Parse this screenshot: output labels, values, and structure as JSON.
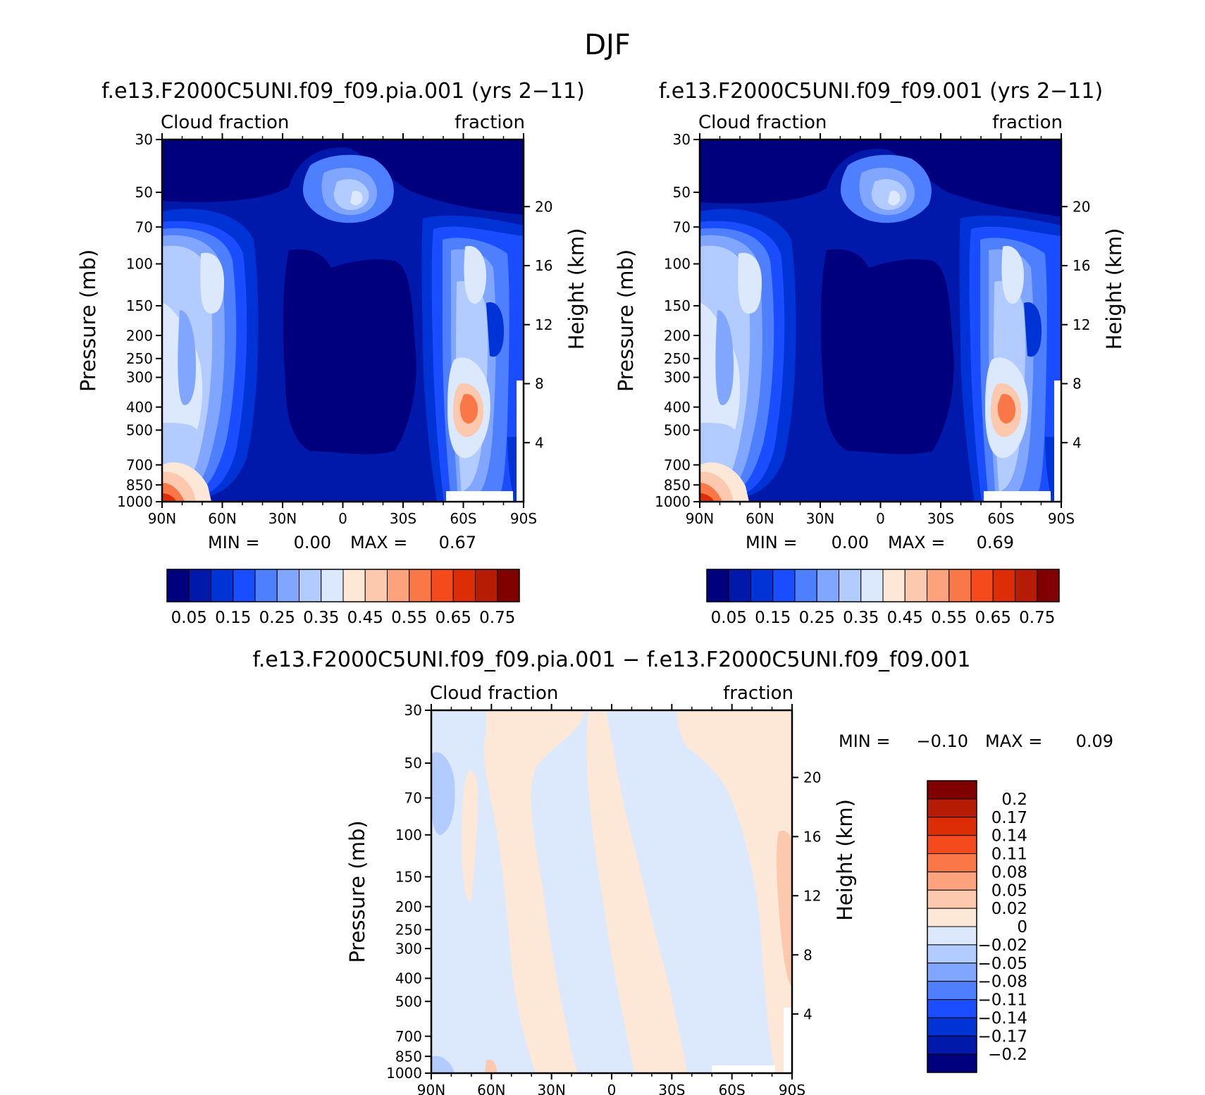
{
  "figure": {
    "title": "DJF"
  },
  "chart_data": [
    {
      "type": "heatmap",
      "title": "f.e13.F2000C5UNI.f09_f09.pia.001 (yrs 2−11)",
      "left_label": "Cloud fraction",
      "right_label": "fraction",
      "ylabel": "Pressure (mb)",
      "ylabel_right": "Height (km)",
      "xticks": [
        "90N",
        "60N",
        "30N",
        "0",
        "30S",
        "60S",
        "90S"
      ],
      "yticks": [
        "30",
        "50",
        "70",
        "100",
        "150",
        "200",
        "250",
        "300",
        "400",
        "500",
        "700",
        "850",
        "1000"
      ],
      "yticks_right": [
        "20",
        "16",
        "12",
        "8",
        "4"
      ],
      "min_text": "MIN =",
      "min_value": "0.00",
      "max_text": "MAX =",
      "max_value": "0.67",
      "colorbar_labels": [
        "0.05",
        "0.15",
        "0.25",
        "0.35",
        "0.45",
        "0.55",
        "0.65",
        "0.75"
      ],
      "colorbar_colors": [
        "#00007f",
        "#0019aa",
        "#0033d5",
        "#1a4dff",
        "#4d7fff",
        "#80a6ff",
        "#b3ccff",
        "#dce9fc",
        "#fde8d8",
        "#fcc9ae",
        "#fca37d",
        "#fa7848",
        "#f44a1c",
        "#dd2d06",
        "#b51c03",
        "#800000"
      ]
    },
    {
      "type": "heatmap",
      "title": "f.e13.F2000C5UNI.f09_f09.001 (yrs 2−11)",
      "left_label": "Cloud fraction",
      "right_label": "fraction",
      "ylabel": "Pressure (mb)",
      "ylabel_right": "Height (km)",
      "xticks": [
        "90N",
        "60N",
        "30N",
        "0",
        "30S",
        "60S",
        "90S"
      ],
      "yticks": [
        "30",
        "50",
        "70",
        "100",
        "150",
        "200",
        "250",
        "300",
        "400",
        "500",
        "700",
        "850",
        "1000"
      ],
      "yticks_right": [
        "20",
        "16",
        "12",
        "8",
        "4"
      ],
      "min_text": "MIN =",
      "min_value": "0.00",
      "max_text": "MAX =",
      "max_value": "0.69",
      "colorbar_labels": [
        "0.05",
        "0.15",
        "0.25",
        "0.35",
        "0.45",
        "0.55",
        "0.65",
        "0.75"
      ],
      "colorbar_colors": [
        "#00007f",
        "#0019aa",
        "#0033d5",
        "#1a4dff",
        "#4d7fff",
        "#80a6ff",
        "#b3ccff",
        "#dce9fc",
        "#fde8d8",
        "#fcc9ae",
        "#fca37d",
        "#fa7848",
        "#f44a1c",
        "#dd2d06",
        "#b51c03",
        "#800000"
      ]
    },
    {
      "type": "heatmap",
      "title": "f.e13.F2000C5UNI.f09_f09.pia.001 − f.e13.F2000C5UNI.f09_f09.001",
      "left_label": "Cloud fraction",
      "right_label": "fraction",
      "ylabel": "Pressure (mb)",
      "ylabel_right": "Height (km)",
      "xticks": [
        "90N",
        "60N",
        "30N",
        "0",
        "30S",
        "60S",
        "90S"
      ],
      "yticks": [
        "30",
        "50",
        "70",
        "100",
        "150",
        "200",
        "250",
        "300",
        "400",
        "500",
        "700",
        "850",
        "1000"
      ],
      "yticks_right": [
        "20",
        "16",
        "12",
        "8",
        "4"
      ],
      "min_text": "MIN =",
      "min_value": "−0.10",
      "max_text": "MAX =",
      "max_value": "0.09",
      "colorbar_labels": [
        "0.2",
        "0.17",
        "0.14",
        "0.11",
        "0.08",
        "0.05",
        "0.02",
        "0",
        "−0.02",
        "−0.05",
        "−0.08",
        "−0.11",
        "−0.14",
        "−0.17",
        "−0.2"
      ],
      "colorbar_colors": [
        "#800000",
        "#b51c03",
        "#dd2d06",
        "#f44a1c",
        "#fa7848",
        "#fca37d",
        "#fcc9ae",
        "#fde8d8",
        "#dce9fc",
        "#b3ccff",
        "#80a6ff",
        "#4d7fff",
        "#1a4dff",
        "#0033d5",
        "#0019aa",
        "#00007f"
      ]
    }
  ]
}
